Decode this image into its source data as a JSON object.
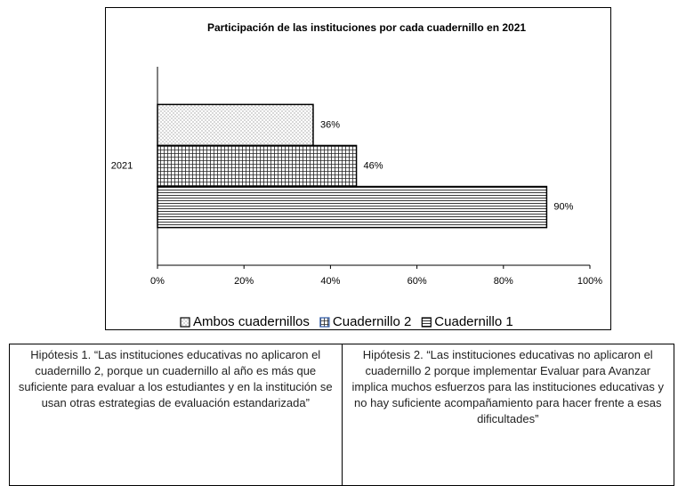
{
  "chart_data": {
    "type": "hbar",
    "title": "Participación de las instituciones por cada cuadernillo en 2021",
    "categories": [
      "2021"
    ],
    "series": [
      {
        "name": "Ambos cuadernillos",
        "color": "#000000",
        "pattern": "dots",
        "values": [
          36
        ],
        "value_labels": [
          "36%"
        ]
      },
      {
        "name": "Cuadernillo 2",
        "color": "#000000",
        "pattern": "grid",
        "values": [
          46
        ],
        "value_labels": [
          "46%"
        ]
      },
      {
        "name": "Cuadernillo 1",
        "color": "#000000",
        "pattern": "hlines",
        "values": [
          90
        ],
        "value_labels": [
          "90%"
        ]
      }
    ],
    "xlim": [
      0,
      100
    ],
    "xticks": [
      {
        "value": 0,
        "label": "0%"
      },
      {
        "value": 20,
        "label": "20%"
      },
      {
        "value": 40,
        "label": "40%"
      },
      {
        "value": 60,
        "label": "60%"
      },
      {
        "value": 80,
        "label": "80%"
      },
      {
        "value": 100,
        "label": "100%"
      }
    ],
    "legend": "bottom"
  },
  "table": {
    "cells": [
      "Hipótesis 1. “Las instituciones educativas no aplicaron el cuadernillo 2, porque un cuadernillo al año es más que suficiente para evaluar a los estudiantes y en la institución se usan otras estrategias de evaluación estandarizada”",
      "Hipótesis 2. “Las instituciones educativas no aplicaron el cuadernillo 2 porque implementar Evaluar para Avanzar implica muchos esfuerzos para las instituciones educativas y no hay suficiente acompañamiento para hacer frente a esas dificultades”"
    ]
  }
}
